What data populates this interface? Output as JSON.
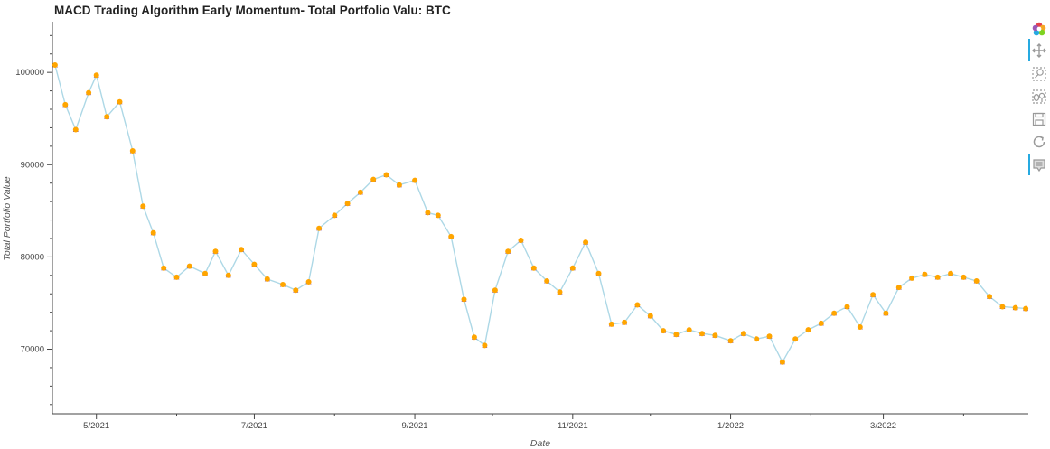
{
  "title": "MACD Trading Algorithm Early Momentum- Total Portfolio Valu: BTC",
  "toolbar": {
    "tools": [
      "bokeh-logo-icon",
      "pan-icon",
      "box-zoom-icon",
      "wheel-zoom-icon",
      "save-icon",
      "reset-icon",
      "hover-icon"
    ],
    "active": [
      "pan-icon",
      "hover-icon"
    ],
    "accent": "#26aae1"
  },
  "chart_data": {
    "type": "line",
    "xlabel": "Date",
    "ylabel": "Total Portfolio Value",
    "x_ticks": [
      "5/2021",
      "7/2021",
      "9/2021",
      "11/2021",
      "1/2022",
      "3/2022"
    ],
    "y_ticks": [
      "70000",
      "80000",
      "90000",
      "100000"
    ],
    "y_tick_values": [
      70000,
      80000,
      90000,
      100000
    ],
    "ylim": [
      63000,
      105500
    ],
    "xlim": [
      "2021-04-14",
      "2022-04-26"
    ],
    "line_color": "#add8e6",
    "marker_color": "#ffa500",
    "marker_edge_color": "#7a3fa0",
    "grid": false,
    "series": [
      {
        "x": [
          "2021-04-15",
          "2021-04-19",
          "2021-04-23",
          "2021-04-28",
          "2021-05-01",
          "2021-05-05",
          "2021-05-10",
          "2021-05-15",
          "2021-05-19",
          "2021-05-23",
          "2021-05-27",
          "2021-06-01",
          "2021-06-06",
          "2021-06-12",
          "2021-06-16",
          "2021-06-21",
          "2021-06-26",
          "2021-07-01",
          "2021-07-06",
          "2021-07-12",
          "2021-07-17",
          "2021-07-22",
          "2021-07-26",
          "2021-08-01",
          "2021-08-06",
          "2021-08-11",
          "2021-08-16",
          "2021-08-21",
          "2021-08-26",
          "2021-09-01",
          "2021-09-06",
          "2021-09-10",
          "2021-09-15",
          "2021-09-20",
          "2021-09-24",
          "2021-09-28",
          "2021-10-02",
          "2021-10-07",
          "2021-10-12",
          "2021-10-17",
          "2021-10-22",
          "2021-10-27",
          "2021-11-01",
          "2021-11-06",
          "2021-11-11",
          "2021-11-16",
          "2021-11-21",
          "2021-11-26",
          "2021-12-01",
          "2021-12-06",
          "2021-12-11",
          "2021-12-16",
          "2021-12-21",
          "2021-12-26",
          "2022-01-01",
          "2022-01-06",
          "2022-01-11",
          "2022-01-16",
          "2022-01-21",
          "2022-01-26",
          "2022-01-31",
          "2022-02-05",
          "2022-02-10",
          "2022-02-15",
          "2022-02-20",
          "2022-02-25",
          "2022-03-02",
          "2022-03-07",
          "2022-03-12",
          "2022-03-17",
          "2022-03-22",
          "2022-03-27",
          "2022-04-01",
          "2022-04-06",
          "2022-04-11",
          "2022-04-16",
          "2022-04-21",
          "2022-04-25"
        ],
        "values": [
          100800,
          96500,
          93800,
          97800,
          99700,
          95200,
          96800,
          91500,
          85500,
          82600,
          78800,
          77800,
          79000,
          78200,
          80600,
          78000,
          80800,
          79200,
          77600,
          77000,
          76400,
          77300,
          83100,
          84500,
          85800,
          87000,
          88400,
          88900,
          87800,
          88300,
          84800,
          84500,
          82200,
          75400,
          71300,
          70400,
          76400,
          80600,
          81800,
          78800,
          77400,
          76200,
          78800,
          81600,
          78200,
          72700,
          72900,
          74800,
          73600,
          72000,
          71600,
          72100,
          71700,
          71500,
          70900,
          71700,
          71100,
          71400,
          68600,
          71100,
          72100,
          72800,
          73900,
          74600,
          72400,
          75900,
          73900,
          76700,
          77700,
          78100,
          77800,
          78200,
          77800,
          77400,
          75700,
          74600,
          74500,
          74400
        ]
      }
    ]
  }
}
